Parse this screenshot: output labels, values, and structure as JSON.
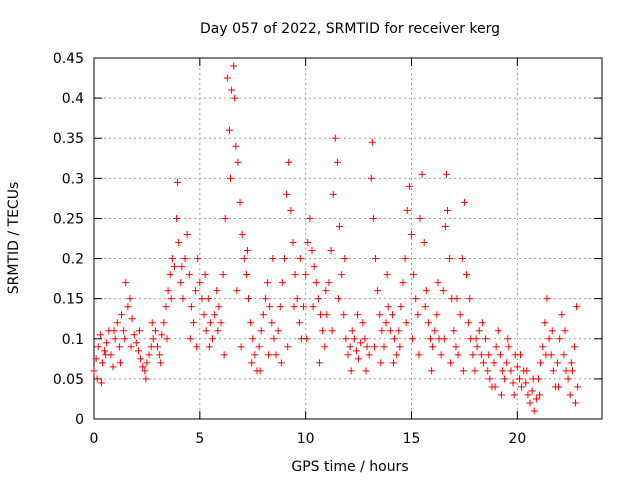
{
  "chart_data": {
    "type": "scatter",
    "title": "Day 057 of 2022, SRMTID for receiver kerg",
    "xlabel": "GPS time / hours",
    "ylabel": "SRMTID / TECUs",
    "xlim": [
      0,
      24
    ],
    "ylim": [
      0,
      0.45
    ],
    "x_ticks": [
      {
        "value": 0,
        "label": "0"
      },
      {
        "value": 5,
        "label": "5"
      },
      {
        "value": 10,
        "label": "10"
      },
      {
        "value": 15,
        "label": "15"
      },
      {
        "value": 20,
        "label": "20"
      }
    ],
    "y_ticks": [
      {
        "value": 0,
        "label": "0"
      },
      {
        "value": 0.05,
        "label": "0.05"
      },
      {
        "value": 0.1,
        "label": "0.1"
      },
      {
        "value": 0.15,
        "label": "0.15"
      },
      {
        "value": 0.2,
        "label": "0.2"
      },
      {
        "value": 0.25,
        "label": "0.25"
      },
      {
        "value": 0.3,
        "label": "0.3"
      },
      {
        "value": 0.35,
        "label": "0.35"
      },
      {
        "value": 0.4,
        "label": "0.4"
      },
      {
        "value": 0.45,
        "label": "0.45"
      }
    ],
    "grid": true,
    "marker": "plus",
    "marker_color": "#ff0000",
    "series": [
      {
        "name": "SRMTID",
        "points": [
          [
            0.0,
            0.06
          ],
          [
            0.1,
            0.075
          ],
          [
            0.2,
            0.09
          ],
          [
            0.3,
            0.105
          ],
          [
            0.4,
            0.07
          ],
          [
            0.5,
            0.085
          ],
          [
            0.6,
            0.095
          ],
          [
            0.7,
            0.11
          ],
          [
            0.8,
            0.08
          ],
          [
            0.9,
            0.065
          ],
          [
            1.0,
            0.1
          ],
          [
            1.1,
            0.12
          ],
          [
            1.2,
            0.09
          ],
          [
            1.3,
            0.13
          ],
          [
            1.4,
            0.11
          ],
          [
            1.5,
            0.17
          ],
          [
            1.6,
            0.14
          ],
          [
            1.7,
            0.15
          ],
          [
            1.8,
            0.125
          ],
          [
            1.9,
            0.105
          ],
          [
            2.0,
            0.095
          ],
          [
            2.1,
            0.085
          ],
          [
            2.2,
            0.075
          ],
          [
            2.3,
            0.065
          ],
          [
            2.4,
            0.06
          ],
          [
            2.5,
            0.07
          ],
          [
            2.6,
            0.08
          ],
          [
            2.7,
            0.09
          ],
          [
            2.8,
            0.1
          ],
          [
            2.9,
            0.11
          ],
          [
            3.0,
            0.09
          ],
          [
            3.1,
            0.08
          ],
          [
            3.2,
            0.105
          ],
          [
            3.3,
            0.12
          ],
          [
            3.4,
            0.14
          ],
          [
            3.5,
            0.16
          ],
          [
            3.6,
            0.18
          ],
          [
            3.7,
            0.2
          ],
          [
            3.8,
            0.19
          ],
          [
            3.9,
            0.25
          ],
          [
            3.95,
            0.295
          ],
          [
            4.0,
            0.22
          ],
          [
            4.1,
            0.17
          ],
          [
            4.2,
            0.15
          ],
          [
            4.3,
            0.2
          ],
          [
            4.4,
            0.23
          ],
          [
            4.5,
            0.18
          ],
          [
            4.6,
            0.14
          ],
          [
            4.7,
            0.12
          ],
          [
            4.8,
            0.16
          ],
          [
            4.9,
            0.2
          ],
          [
            5.0,
            0.17
          ],
          [
            5.1,
            0.15
          ],
          [
            5.2,
            0.13
          ],
          [
            5.3,
            0.11
          ],
          [
            5.4,
            0.15
          ],
          [
            5.5,
            0.12
          ],
          [
            5.6,
            0.1
          ],
          [
            5.7,
            0.13
          ],
          [
            5.8,
            0.16
          ],
          [
            5.9,
            0.14
          ],
          [
            6.0,
            0.12
          ],
          [
            6.1,
            0.18
          ],
          [
            6.2,
            0.25
          ],
          [
            6.3,
            0.425
          ],
          [
            6.4,
            0.36
          ],
          [
            6.5,
            0.41
          ],
          [
            6.6,
            0.44
          ],
          [
            6.65,
            0.4
          ],
          [
            6.7,
            0.34
          ],
          [
            6.8,
            0.32
          ],
          [
            6.9,
            0.27
          ],
          [
            7.0,
            0.23
          ],
          [
            7.1,
            0.2
          ],
          [
            7.2,
            0.18
          ],
          [
            7.3,
            0.15
          ],
          [
            7.4,
            0.12
          ],
          [
            7.5,
            0.1
          ],
          [
            7.6,
            0.08
          ],
          [
            7.7,
            0.06
          ],
          [
            7.8,
            0.09
          ],
          [
            7.9,
            0.11
          ],
          [
            8.0,
            0.13
          ],
          [
            8.1,
            0.15
          ],
          [
            8.2,
            0.17
          ],
          [
            8.3,
            0.14
          ],
          [
            8.4,
            0.12
          ],
          [
            8.5,
            0.1
          ],
          [
            8.6,
            0.08
          ],
          [
            8.7,
            0.11
          ],
          [
            8.8,
            0.14
          ],
          [
            8.9,
            0.17
          ],
          [
            9.0,
            0.2
          ],
          [
            9.1,
            0.28
          ],
          [
            9.2,
            0.32
          ],
          [
            9.3,
            0.26
          ],
          [
            9.4,
            0.22
          ],
          [
            9.5,
            0.18
          ],
          [
            9.6,
            0.15
          ],
          [
            9.7,
            0.12
          ],
          [
            9.8,
            0.1
          ],
          [
            9.9,
            0.14
          ],
          [
            10.0,
            0.18
          ],
          [
            10.1,
            0.22
          ],
          [
            10.2,
            0.25
          ],
          [
            10.3,
            0.21
          ],
          [
            10.4,
            0.19
          ],
          [
            10.5,
            0.17
          ],
          [
            10.6,
            0.15
          ],
          [
            10.7,
            0.13
          ],
          [
            10.8,
            0.11
          ],
          [
            10.9,
            0.09
          ],
          [
            11.0,
            0.13
          ],
          [
            11.1,
            0.17
          ],
          [
            11.2,
            0.21
          ],
          [
            11.3,
            0.28
          ],
          [
            11.4,
            0.35
          ],
          [
            11.5,
            0.32
          ],
          [
            11.6,
            0.24
          ],
          [
            11.7,
            0.18
          ],
          [
            11.8,
            0.13
          ],
          [
            11.9,
            0.1
          ],
          [
            12.0,
            0.08
          ],
          [
            12.1,
            0.09
          ],
          [
            12.2,
            0.11
          ],
          [
            12.3,
            0.1
          ],
          [
            12.4,
            0.085
          ],
          [
            12.5,
            0.075
          ],
          [
            12.6,
            0.095
          ],
          [
            12.7,
            0.12
          ],
          [
            12.8,
            0.1
          ],
          [
            12.9,
            0.09
          ],
          [
            13.0,
            0.08
          ],
          [
            13.1,
            0.3
          ],
          [
            13.15,
            0.345
          ],
          [
            13.2,
            0.25
          ],
          [
            13.3,
            0.2
          ],
          [
            13.4,
            0.16
          ],
          [
            13.5,
            0.13
          ],
          [
            13.6,
            0.11
          ],
          [
            13.7,
            0.09
          ],
          [
            13.8,
            0.12
          ],
          [
            13.9,
            0.14
          ],
          [
            14.0,
            0.11
          ],
          [
            14.1,
            0.13
          ],
          [
            14.2,
            0.1
          ],
          [
            14.3,
            0.08
          ],
          [
            14.4,
            0.11
          ],
          [
            14.5,
            0.14
          ],
          [
            14.6,
            0.17
          ],
          [
            14.7,
            0.2
          ],
          [
            14.8,
            0.26
          ],
          [
            14.9,
            0.29
          ],
          [
            15.0,
            0.23
          ],
          [
            15.1,
            0.18
          ],
          [
            15.2,
            0.15
          ],
          [
            15.3,
            0.13
          ],
          [
            15.4,
            0.25
          ],
          [
            15.5,
            0.305
          ],
          [
            15.6,
            0.22
          ],
          [
            15.7,
            0.16
          ],
          [
            15.8,
            0.12
          ],
          [
            15.9,
            0.1
          ],
          [
            16.0,
            0.09
          ],
          [
            16.1,
            0.11
          ],
          [
            16.2,
            0.13
          ],
          [
            16.3,
            0.1
          ],
          [
            16.4,
            0.08
          ],
          [
            16.5,
            0.16
          ],
          [
            16.6,
            0.24
          ],
          [
            16.65,
            0.305
          ],
          [
            16.7,
            0.26
          ],
          [
            16.8,
            0.2
          ],
          [
            16.9,
            0.15
          ],
          [
            17.0,
            0.11
          ],
          [
            17.1,
            0.09
          ],
          [
            17.2,
            0.08
          ],
          [
            17.3,
            0.13
          ],
          [
            17.4,
            0.2
          ],
          [
            17.5,
            0.27
          ],
          [
            17.6,
            0.18
          ],
          [
            17.7,
            0.12
          ],
          [
            17.8,
            0.1
          ],
          [
            17.9,
            0.08
          ],
          [
            18.0,
            0.06
          ],
          [
            18.1,
            0.09
          ],
          [
            18.2,
            0.11
          ],
          [
            18.3,
            0.08
          ],
          [
            18.4,
            0.07
          ],
          [
            18.5,
            0.1
          ],
          [
            18.6,
            0.06
          ],
          [
            18.7,
            0.05
          ],
          [
            18.8,
            0.04
          ],
          [
            18.9,
            0.07
          ],
          [
            19.0,
            0.09
          ],
          [
            19.1,
            0.11
          ],
          [
            19.2,
            0.08
          ],
          [
            19.3,
            0.06
          ],
          [
            19.4,
            0.05
          ],
          [
            19.5,
            0.07
          ],
          [
            19.6,
            0.09
          ],
          [
            19.7,
            0.06
          ],
          [
            19.8,
            0.045
          ],
          [
            19.9,
            0.08
          ],
          [
            20.0,
            0.065
          ],
          [
            20.1,
            0.05
          ],
          [
            20.2,
            0.04
          ],
          [
            20.3,
            0.06
          ],
          [
            20.4,
            0.045
          ],
          [
            20.5,
            0.03
          ],
          [
            20.6,
            0.02
          ],
          [
            20.7,
            0.035
          ],
          [
            20.8,
            0.01
          ],
          [
            20.9,
            0.025
          ],
          [
            21.0,
            0.05
          ],
          [
            21.1,
            0.07
          ],
          [
            21.2,
            0.09
          ],
          [
            21.3,
            0.12
          ],
          [
            21.4,
            0.15
          ],
          [
            21.5,
            0.1
          ],
          [
            21.6,
            0.08
          ],
          [
            21.7,
            0.06
          ],
          [
            21.8,
            0.04
          ],
          [
            21.9,
            0.07
          ],
          [
            22.0,
            0.1
          ],
          [
            22.1,
            0.13
          ],
          [
            22.2,
            0.08
          ],
          [
            22.3,
            0.06
          ],
          [
            22.4,
            0.05
          ],
          [
            22.5,
            0.03
          ],
          [
            22.6,
            0.06
          ],
          [
            22.7,
            0.09
          ],
          [
            22.8,
            0.14
          ],
          [
            22.85,
            0.04
          ],
          [
            0.15,
            0.05
          ],
          [
            0.35,
            0.045
          ],
          [
            0.55,
            0.08
          ],
          [
            0.95,
            0.11
          ],
          [
            1.25,
            0.07
          ],
          [
            1.45,
            0.1
          ],
          [
            1.75,
            0.09
          ],
          [
            2.15,
            0.11
          ],
          [
            2.45,
            0.05
          ],
          [
            2.75,
            0.12
          ],
          [
            3.15,
            0.07
          ],
          [
            3.45,
            0.1
          ],
          [
            3.65,
            0.15
          ],
          [
            4.15,
            0.19
          ],
          [
            4.55,
            0.1
          ],
          [
            4.85,
            0.09
          ],
          [
            5.25,
            0.18
          ],
          [
            5.45,
            0.09
          ],
          [
            5.85,
            0.11
          ],
          [
            6.15,
            0.08
          ],
          [
            6.45,
            0.3
          ],
          [
            6.75,
            0.16
          ],
          [
            6.95,
            0.09
          ],
          [
            7.25,
            0.21
          ],
          [
            7.45,
            0.07
          ],
          [
            7.85,
            0.06
          ],
          [
            8.25,
            0.08
          ],
          [
            8.45,
            0.2
          ],
          [
            8.85,
            0.07
          ],
          [
            9.15,
            0.09
          ],
          [
            9.45,
            0.14
          ],
          [
            9.75,
            0.2
          ],
          [
            10.05,
            0.1
          ],
          [
            10.35,
            0.14
          ],
          [
            10.65,
            0.07
          ],
          [
            10.95,
            0.16
          ],
          [
            11.25,
            0.11
          ],
          [
            11.55,
            0.15
          ],
          [
            11.85,
            0.2
          ],
          [
            12.15,
            0.06
          ],
          [
            12.45,
            0.13
          ],
          [
            12.85,
            0.06
          ],
          [
            13.25,
            0.09
          ],
          [
            13.55,
            0.07
          ],
          [
            13.85,
            0.18
          ],
          [
            14.15,
            0.07
          ],
          [
            14.45,
            0.09
          ],
          [
            14.75,
            0.12
          ],
          [
            15.05,
            0.1
          ],
          [
            15.35,
            0.08
          ],
          [
            15.65,
            0.14
          ],
          [
            15.95,
            0.06
          ],
          [
            16.25,
            0.17
          ],
          [
            16.55,
            0.1
          ],
          [
            16.85,
            0.07
          ],
          [
            17.15,
            0.15
          ],
          [
            17.45,
            0.06
          ],
          [
            17.75,
            0.15
          ],
          [
            18.05,
            0.1
          ],
          [
            18.35,
            0.12
          ],
          [
            18.65,
            0.08
          ],
          [
            18.95,
            0.04
          ],
          [
            19.25,
            0.03
          ],
          [
            19.55,
            0.1
          ],
          [
            19.85,
            0.03
          ],
          [
            20.15,
            0.08
          ],
          [
            20.45,
            0.06
          ],
          [
            20.75,
            0.05
          ],
          [
            21.05,
            0.03
          ],
          [
            21.35,
            0.08
          ],
          [
            21.65,
            0.11
          ],
          [
            21.95,
            0.04
          ],
          [
            22.25,
            0.11
          ],
          [
            22.55,
            0.07
          ],
          [
            22.75,
            0.02
          ]
        ]
      }
    ]
  }
}
